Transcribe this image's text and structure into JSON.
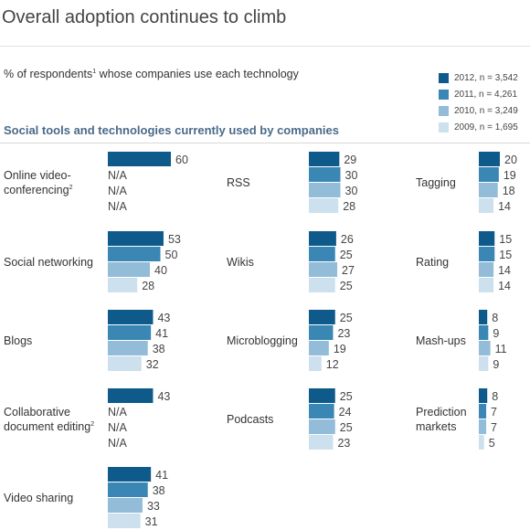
{
  "title": "Overall adoption continues to climb",
  "subtitle": {
    "before": "% of respondents",
    "sup": "1",
    "after": " whose companies use each technology"
  },
  "section_title": "Social tools and technologies currently used by companies",
  "legend": [
    {
      "label": "2012, n = 3,542",
      "color": "#0e5a8a"
    },
    {
      "label": "2011, n = 4,261",
      "color": "#3a86b4"
    },
    {
      "label": "2010, n = 3,249",
      "color": "#93bcd8"
    },
    {
      "label": "2009, n = 1,695",
      "color": "#cde0ee"
    }
  ],
  "na_label": "N/A",
  "chart_data": {
    "type": "bar",
    "orientation": "horizontal",
    "series_names": [
      "2012, n = 3,542",
      "2011, n = 4,261",
      "2010, n = 3,249",
      "2009, n = 1,695"
    ],
    "panels": [
      {
        "label": [
          "Online video-",
          "conferencing"
        ],
        "sup": "2",
        "values": [
          60,
          null,
          null,
          null
        ]
      },
      {
        "label": [
          "Social networking"
        ],
        "values": [
          53,
          50,
          40,
          28
        ]
      },
      {
        "label": [
          "Blogs"
        ],
        "values": [
          43,
          41,
          38,
          32
        ]
      },
      {
        "label": [
          "Collaborative",
          "document editing"
        ],
        "sup": "2",
        "values": [
          43,
          null,
          null,
          null
        ]
      },
      {
        "label": [
          "Video sharing"
        ],
        "values": [
          41,
          38,
          33,
          31
        ]
      },
      {
        "label": [
          "RSS"
        ],
        "values": [
          29,
          30,
          30,
          28
        ]
      },
      {
        "label": [
          "Wikis"
        ],
        "values": [
          26,
          25,
          27,
          25
        ]
      },
      {
        "label": [
          "Microblogging"
        ],
        "values": [
          25,
          23,
          19,
          12
        ]
      },
      {
        "label": [
          "Podcasts"
        ],
        "values": [
          25,
          24,
          25,
          23
        ]
      },
      {
        "label": [
          "Tagging"
        ],
        "values": [
          20,
          19,
          18,
          14
        ]
      },
      {
        "label": [
          "Rating"
        ],
        "values": [
          15,
          15,
          14,
          14
        ]
      },
      {
        "label": [
          "Mash-ups"
        ],
        "values": [
          8,
          9,
          11,
          9
        ]
      },
      {
        "label": [
          "Prediction",
          "markets"
        ],
        "values": [
          8,
          7,
          7,
          5
        ]
      }
    ]
  }
}
